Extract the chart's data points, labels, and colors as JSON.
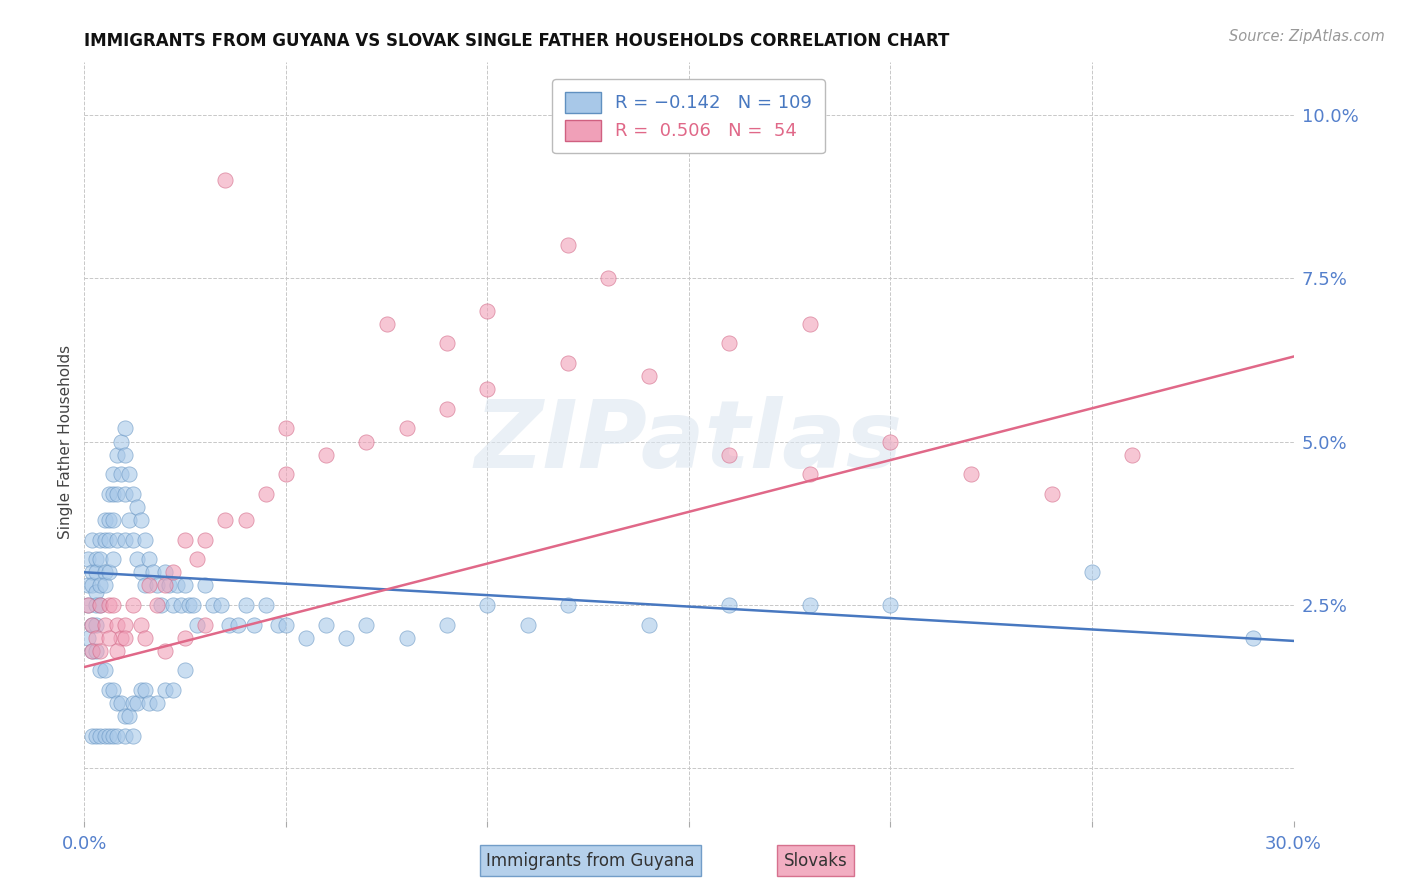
{
  "title": "IMMIGRANTS FROM GUYANA VS SLOVAK SINGLE FATHER HOUSEHOLDS CORRELATION CHART",
  "source": "Source: ZipAtlas.com",
  "ylabel": "Single Father Households",
  "xlim": [
    0.0,
    0.3
  ],
  "ylim": [
    -0.008,
    0.108
  ],
  "yticks": [
    0.0,
    0.025,
    0.05,
    0.075,
    0.1
  ],
  "ytick_labels": [
    "",
    "2.5%",
    "5.0%",
    "7.5%",
    "10.0%"
  ],
  "xticks": [
    0.0,
    0.05,
    0.1,
    0.15,
    0.2,
    0.25,
    0.3
  ],
  "xtick_labels": [
    "0.0%",
    "",
    "",
    "",
    "",
    "",
    "30.0%"
  ],
  "watermark_text": "ZIPatlas",
  "background_color": "#ffffff",
  "grid_color": "#c8c8c8",
  "blue_color": "#a8c8e8",
  "pink_color": "#f0a0b8",
  "blue_edge_color": "#6090c0",
  "pink_edge_color": "#d06080",
  "line_blue_color": "#4878c0",
  "line_pink_color": "#e06888",
  "line_width": 1.8,
  "scatter_size": 120,
  "scatter_alpha": 0.6,
  "blue_line_x": [
    0.0,
    0.3
  ],
  "blue_line_y": [
    0.03,
    0.0195
  ],
  "pink_line_x": [
    0.0,
    0.3
  ],
  "pink_line_y": [
    0.0155,
    0.063
  ],
  "blue_scatter_x": [
    0.001,
    0.001,
    0.001,
    0.002,
    0.002,
    0.002,
    0.002,
    0.003,
    0.003,
    0.003,
    0.003,
    0.003,
    0.004,
    0.004,
    0.004,
    0.004,
    0.005,
    0.005,
    0.005,
    0.005,
    0.006,
    0.006,
    0.006,
    0.006,
    0.007,
    0.007,
    0.007,
    0.007,
    0.008,
    0.008,
    0.008,
    0.009,
    0.009,
    0.01,
    0.01,
    0.01,
    0.01,
    0.011,
    0.011,
    0.012,
    0.012,
    0.013,
    0.013,
    0.014,
    0.014,
    0.015,
    0.015,
    0.016,
    0.017,
    0.018,
    0.019,
    0.02,
    0.021,
    0.022,
    0.023,
    0.024,
    0.025,
    0.026,
    0.027,
    0.028,
    0.03,
    0.032,
    0.034,
    0.036,
    0.038,
    0.04,
    0.042,
    0.045,
    0.048,
    0.05,
    0.055,
    0.06,
    0.065,
    0.07,
    0.08,
    0.09,
    0.1,
    0.11,
    0.12,
    0.14,
    0.001,
    0.002,
    0.003,
    0.004,
    0.005,
    0.006,
    0.007,
    0.008,
    0.009,
    0.01,
    0.011,
    0.012,
    0.013,
    0.014,
    0.015,
    0.016,
    0.018,
    0.02,
    0.022,
    0.025,
    0.002,
    0.003,
    0.004,
    0.005,
    0.006,
    0.007,
    0.008,
    0.01,
    0.012,
    0.16,
    0.18,
    0.2,
    0.25,
    0.29
  ],
  "blue_scatter_y": [
    0.032,
    0.028,
    0.025,
    0.035,
    0.03,
    0.028,
    0.022,
    0.032,
    0.03,
    0.027,
    0.025,
    0.022,
    0.035,
    0.032,
    0.028,
    0.025,
    0.038,
    0.035,
    0.03,
    0.028,
    0.042,
    0.038,
    0.035,
    0.03,
    0.045,
    0.042,
    0.038,
    0.032,
    0.048,
    0.042,
    0.035,
    0.05,
    0.045,
    0.052,
    0.048,
    0.042,
    0.035,
    0.045,
    0.038,
    0.042,
    0.035,
    0.04,
    0.032,
    0.038,
    0.03,
    0.035,
    0.028,
    0.032,
    0.03,
    0.028,
    0.025,
    0.03,
    0.028,
    0.025,
    0.028,
    0.025,
    0.028,
    0.025,
    0.025,
    0.022,
    0.028,
    0.025,
    0.025,
    0.022,
    0.022,
    0.025,
    0.022,
    0.025,
    0.022,
    0.022,
    0.02,
    0.022,
    0.02,
    0.022,
    0.02,
    0.022,
    0.025,
    0.022,
    0.025,
    0.022,
    0.02,
    0.018,
    0.018,
    0.015,
    0.015,
    0.012,
    0.012,
    0.01,
    0.01,
    0.008,
    0.008,
    0.01,
    0.01,
    0.012,
    0.012,
    0.01,
    0.01,
    0.012,
    0.012,
    0.015,
    0.005,
    0.005,
    0.005,
    0.005,
    0.005,
    0.005,
    0.005,
    0.005,
    0.005,
    0.025,
    0.025,
    0.025,
    0.03,
    0.02
  ],
  "pink_scatter_x": [
    0.001,
    0.002,
    0.003,
    0.004,
    0.005,
    0.006,
    0.007,
    0.008,
    0.009,
    0.01,
    0.012,
    0.014,
    0.016,
    0.018,
    0.02,
    0.022,
    0.025,
    0.028,
    0.03,
    0.035,
    0.04,
    0.045,
    0.05,
    0.06,
    0.07,
    0.08,
    0.09,
    0.1,
    0.12,
    0.14,
    0.002,
    0.004,
    0.006,
    0.008,
    0.01,
    0.015,
    0.02,
    0.025,
    0.03,
    0.16,
    0.18,
    0.2,
    0.22,
    0.24,
    0.26,
    0.16,
    0.18,
    0.12,
    0.13,
    0.1,
    0.09,
    0.075,
    0.05,
    0.035
  ],
  "pink_scatter_y": [
    0.025,
    0.022,
    0.02,
    0.025,
    0.022,
    0.025,
    0.025,
    0.022,
    0.02,
    0.022,
    0.025,
    0.022,
    0.028,
    0.025,
    0.028,
    0.03,
    0.035,
    0.032,
    0.035,
    0.038,
    0.038,
    0.042,
    0.045,
    0.048,
    0.05,
    0.052,
    0.055,
    0.058,
    0.062,
    0.06,
    0.018,
    0.018,
    0.02,
    0.018,
    0.02,
    0.02,
    0.018,
    0.02,
    0.022,
    0.048,
    0.045,
    0.05,
    0.045,
    0.042,
    0.048,
    0.065,
    0.068,
    0.08,
    0.075,
    0.07,
    0.065,
    0.068,
    0.052,
    0.09
  ]
}
